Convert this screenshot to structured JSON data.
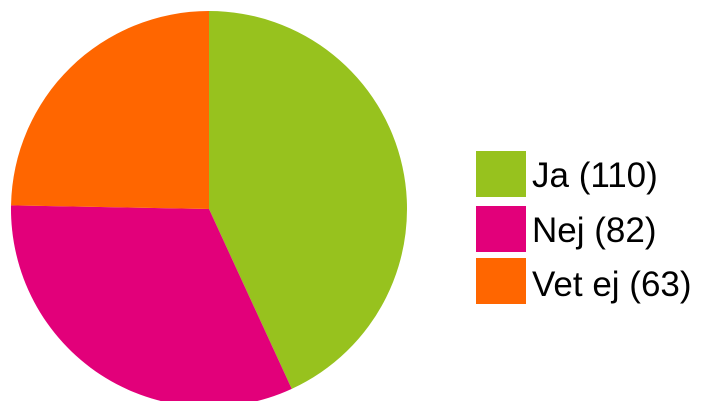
{
  "chart_data": {
    "type": "pie",
    "title": "",
    "start_angle_deg": 0,
    "direction": "clockwise",
    "slices": [
      {
        "label": "Ja (110)",
        "value": 110,
        "color": "#97C21E"
      },
      {
        "label": "Nej (82)",
        "value": 82,
        "color": "#E2007A"
      },
      {
        "label": "Vet ej (63)",
        "value": 63,
        "color": "#FF6600"
      }
    ],
    "legend": {
      "position": "right"
    }
  }
}
